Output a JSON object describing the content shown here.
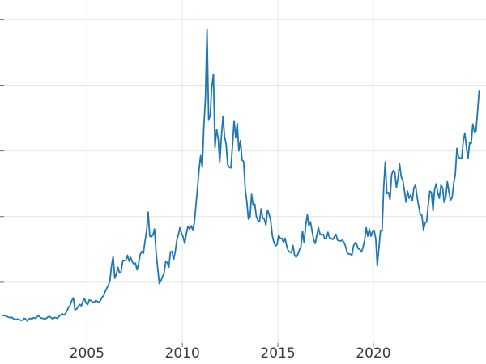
{
  "chart_data": {
    "type": "line",
    "title": "",
    "xlabel": "",
    "ylabel": "",
    "grid": true,
    "legend": false,
    "line_color": "#1f77b4",
    "grid_color": "#e5e5e5",
    "tick_color": "#6e6e6e",
    "background": "#ffffff",
    "xlim": [
      2000.45,
      2025.9
    ],
    "ylim": [
      0,
      53
    ],
    "x_ticks": [
      2005,
      2010,
      2015,
      2020
    ],
    "x_tick_labels": [
      "2005",
      "2010",
      "2015",
      "2020"
    ],
    "y_gridlines": [
      10,
      20,
      30,
      40,
      50
    ],
    "x_start": 2000.542,
    "x_step": 0.083333,
    "values": [
      5.0,
      4.9,
      4.9,
      4.8,
      4.7,
      4.6,
      4.7,
      4.5,
      4.4,
      4.3,
      4.4,
      4.3,
      4.2,
      4.2,
      4.5,
      4.4,
      4.1,
      4.4,
      4.5,
      4.4,
      4.6,
      4.5,
      4.7,
      4.9,
      4.7,
      4.5,
      4.5,
      4.4,
      4.5,
      4.7,
      4.8,
      4.6,
      4.4,
      4.6,
      4.6,
      4.5,
      4.8,
      5.0,
      5.2,
      5.0,
      5.2,
      5.6,
      6.2,
      6.5,
      7.2,
      7.6,
      5.8,
      5.9,
      6.3,
      6.6,
      6.4,
      7.1,
      7.5,
      6.8,
      6.6,
      7.3,
      7.2,
      7.0,
      6.9,
      7.2,
      7.1,
      6.9,
      7.2,
      7.7,
      7.9,
      8.6,
      9.1,
      9.5,
      10.3,
      12.5,
      13.9,
      10.6,
      11.2,
      12.3,
      11.4,
      11.6,
      13.2,
      13.3,
      13.4,
      14.1,
      13.2,
      13.8,
      13.1,
      12.8,
      12.9,
      11.9,
      12.8,
      14.2,
      14.7,
      14.4,
      16.2,
      17.8,
      20.7,
      17.0,
      16.9,
      17.2,
      18.1,
      14.6,
      12.1,
      9.8,
      10.2,
      10.8,
      11.4,
      13.1,
      13.0,
      12.3,
      14.6,
      14.7,
      13.4,
      14.6,
      16.4,
      17.2,
      18.3,
      17.4,
      16.9,
      15.9,
      17.4,
      18.5,
      18.1,
      18.6,
      18.0,
      19.0,
      21.7,
      24.3,
      27.2,
      29.3,
      27.5,
      33.8,
      37.9,
      48.5,
      34.8,
      35.3,
      39.8,
      41.7,
      30.5,
      33.3,
      31.9,
      28.3,
      32.1,
      35.3,
      32.2,
      31.0,
      27.9,
      27.5,
      27.4,
      30.8,
      34.6,
      32.1,
      34.2,
      30.0,
      31.6,
      28.6,
      28.4,
      24.2,
      22.3,
      19.6,
      19.9,
      23.4,
      21.7,
      21.9,
      20.0,
      19.4,
      19.2,
      21.2,
      19.8,
      19.6,
      18.7,
      21.0,
      20.4,
      19.4,
      17.1,
      16.1,
      15.5,
      15.7,
      17.2,
      16.6,
      16.7,
      16.1,
      16.7,
      15.6,
      14.8,
      14.6,
      14.5,
      15.6,
      14.1,
      13.8,
      14.2,
      14.9,
      15.4,
      17.8,
      16.0,
      18.6,
      20.3,
      18.6,
      19.2,
      17.8,
      16.5,
      15.9,
      17.2,
      18.3,
      17.3,
      17.2,
      17.3,
      16.6,
      16.7,
      17.6,
      16.7,
      16.7,
      16.5,
      16.9,
      17.3,
      16.4,
      16.3,
      16.3,
      16.4,
      16.1,
      15.5,
      14.5,
      14.3,
      14.3,
      14.1,
      15.5,
      16.0,
      15.8,
      15.1,
      15.0,
      14.6,
      15.3,
      16.4,
      18.3,
      17.0,
      18.1,
      17.0,
      17.8,
      17.9,
      16.6,
      12.5,
      15.2,
      17.9,
      17.8,
      24.4,
      28.3,
      23.5,
      23.7,
      22.6,
      26.4,
      27.0,
      26.7,
      24.4,
      25.9,
      28.0,
      26.1,
      25.5,
      24.0,
      22.2,
      23.9,
      22.8,
      23.3,
      22.4,
      24.4,
      24.8,
      23.0,
      21.6,
      20.3,
      20.2,
      18.0,
      19.0,
      19.2,
      21.8,
      23.9,
      23.7,
      20.9,
      24.1,
      25.0,
      23.6,
      22.8,
      24.8,
      24.4,
      22.2,
      22.9,
      25.3,
      23.8,
      22.5,
      22.9,
      25.0,
      26.4,
      30.4,
      29.1,
      28.9,
      28.8,
      31.5,
      32.7,
      30.6,
      28.9,
      31.3,
      31.1,
      34.1,
      32.9,
      33.0,
      36.0,
      39.2
    ]
  }
}
